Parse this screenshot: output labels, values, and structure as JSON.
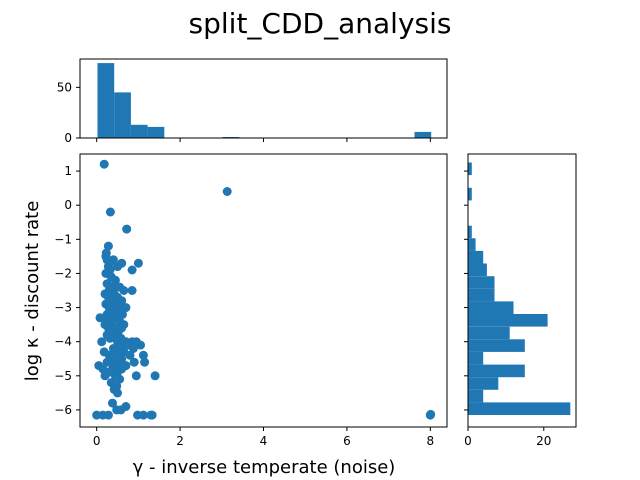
{
  "colors": {
    "primary": "#1f77b4",
    "axis": "#000000",
    "background": "#ffffff"
  },
  "chart_data": {
    "title": "split_CDD_analysis",
    "type": "scatter",
    "xlabel": "γ - inverse temperate (noise)",
    "ylabel": "log κ - discount rate",
    "scatter": {
      "xlim": [
        -0.4,
        8.4
      ],
      "ylim": [
        -6.5,
        1.5
      ],
      "xticks": [
        0,
        2,
        4,
        6,
        8
      ],
      "yticks": [
        -6,
        -5,
        -4,
        -3,
        -2,
        -1,
        0,
        1
      ],
      "points": [
        [
          0.18,
          1.2
        ],
        [
          3.13,
          0.4
        ],
        [
          0.33,
          -0.2
        ],
        [
          0.72,
          -0.7
        ],
        [
          0.28,
          -1.2
        ],
        [
          0.23,
          -1.4
        ],
        [
          0.22,
          -1.5
        ],
        [
          0.25,
          -1.6
        ],
        [
          0.4,
          -1.6
        ],
        [
          1.0,
          -1.7
        ],
        [
          0.3,
          -1.7
        ],
        [
          0.6,
          -1.7
        ],
        [
          0.28,
          -1.8
        ],
        [
          0.5,
          -1.8
        ],
        [
          0.32,
          -1.9
        ],
        [
          0.85,
          -1.9
        ],
        [
          0.22,
          -2.0
        ],
        [
          0.35,
          -2.1
        ],
        [
          0.45,
          -2.2
        ],
        [
          0.25,
          -2.3
        ],
        [
          0.38,
          -2.4
        ],
        [
          0.55,
          -2.4
        ],
        [
          0.3,
          -2.5
        ],
        [
          0.65,
          -2.5
        ],
        [
          0.85,
          -2.5
        ],
        [
          0.2,
          -2.6
        ],
        [
          0.42,
          -2.6
        ],
        [
          0.28,
          -2.7
        ],
        [
          0.5,
          -2.7
        ],
        [
          0.35,
          -2.8
        ],
        [
          0.6,
          -2.8
        ],
        [
          0.22,
          -2.9
        ],
        [
          0.45,
          -2.9
        ],
        [
          0.3,
          -3.0
        ],
        [
          0.55,
          -3.0
        ],
        [
          0.7,
          -3.0
        ],
        [
          0.38,
          -3.1
        ],
        [
          0.25,
          -3.2
        ],
        [
          0.5,
          -3.2
        ],
        [
          0.62,
          -3.2
        ],
        [
          0.08,
          -3.3
        ],
        [
          0.18,
          -3.3
        ],
        [
          0.3,
          -3.3
        ],
        [
          0.42,
          -3.3
        ],
        [
          0.55,
          -3.4
        ],
        [
          0.2,
          -3.5
        ],
        [
          0.35,
          -3.5
        ],
        [
          0.65,
          -3.5
        ],
        [
          0.28,
          -3.6
        ],
        [
          0.48,
          -3.6
        ],
        [
          0.6,
          -3.6
        ],
        [
          0.38,
          -3.7
        ],
        [
          0.52,
          -3.7
        ],
        [
          0.25,
          -3.8
        ],
        [
          0.45,
          -3.8
        ],
        [
          0.32,
          -3.9
        ],
        [
          0.58,
          -3.9
        ],
        [
          0.12,
          -4.0
        ],
        [
          0.5,
          -4.0
        ],
        [
          0.7,
          -4.0
        ],
        [
          0.85,
          -4.0
        ],
        [
          0.95,
          -4.0
        ],
        [
          0.62,
          -4.1
        ],
        [
          0.75,
          -4.1
        ],
        [
          1.05,
          -4.1
        ],
        [
          0.4,
          -4.2
        ],
        [
          0.55,
          -4.2
        ],
        [
          0.88,
          -4.2
        ],
        [
          0.18,
          -4.3
        ],
        [
          0.65,
          -4.3
        ],
        [
          0.3,
          -4.4
        ],
        [
          0.48,
          -4.4
        ],
        [
          0.8,
          -4.4
        ],
        [
          1.12,
          -4.4
        ],
        [
          0.35,
          -4.5
        ],
        [
          0.6,
          -4.5
        ],
        [
          0.25,
          -4.6
        ],
        [
          0.52,
          -4.6
        ],
        [
          0.9,
          -4.6
        ],
        [
          1.15,
          -4.6
        ],
        [
          0.05,
          -4.7
        ],
        [
          0.42,
          -4.7
        ],
        [
          0.7,
          -4.7
        ],
        [
          0.15,
          -4.8
        ],
        [
          0.38,
          -4.8
        ],
        [
          0.6,
          -4.8
        ],
        [
          0.28,
          -4.9
        ],
        [
          0.5,
          -4.9
        ],
        [
          0.2,
          -5.0
        ],
        [
          0.45,
          -5.0
        ],
        [
          0.95,
          -5.0
        ],
        [
          1.4,
          -5.0
        ],
        [
          0.55,
          -5.1
        ],
        [
          0.35,
          -5.2
        ],
        [
          0.48,
          -5.3
        ],
        [
          0.42,
          -5.4
        ],
        [
          0.5,
          -5.5
        ],
        [
          0.38,
          -5.8
        ],
        [
          0.7,
          -5.9
        ],
        [
          0.48,
          -6.0
        ],
        [
          0.58,
          -6.0
        ],
        [
          0.0,
          -6.15
        ],
        [
          0.15,
          -6.15
        ],
        [
          0.28,
          -6.15
        ],
        [
          0.98,
          -6.15
        ],
        [
          1.12,
          -6.15
        ],
        [
          1.3,
          -6.15
        ],
        [
          1.33,
          -6.15
        ],
        [
          8.0,
          -6.15
        ],
        [
          8.01,
          -6.13
        ]
      ]
    },
    "top_histogram": {
      "ylim": [
        0,
        78
      ],
      "yticks": [
        0,
        50
      ],
      "bins": [
        {
          "x0": 0.02,
          "x1": 0.42,
          "count": 74
        },
        {
          "x0": 0.42,
          "x1": 0.82,
          "count": 45
        },
        {
          "x0": 0.82,
          "x1": 1.22,
          "count": 13
        },
        {
          "x0": 1.22,
          "x1": 1.62,
          "count": 11
        },
        {
          "x0": 3.02,
          "x1": 3.42,
          "count": 1
        },
        {
          "x0": 7.62,
          "x1": 8.02,
          "count": 6
        }
      ]
    },
    "right_histogram": {
      "xlim": [
        0,
        28.5
      ],
      "xticks": [
        0,
        20
      ],
      "bins": [
        {
          "y0": -6.15,
          "y1": -5.78,
          "count": 27
        },
        {
          "y0": -5.78,
          "y1": -5.41,
          "count": 4
        },
        {
          "y0": -5.41,
          "y1": -5.04,
          "count": 8
        },
        {
          "y0": -5.04,
          "y1": -4.67,
          "count": 15
        },
        {
          "y0": -4.67,
          "y1": -4.3,
          "count": 4
        },
        {
          "y0": -4.3,
          "y1": -3.93,
          "count": 15
        },
        {
          "y0": -3.93,
          "y1": -3.56,
          "count": 11
        },
        {
          "y0": -3.56,
          "y1": -3.19,
          "count": 21
        },
        {
          "y0": -3.19,
          "y1": -2.82,
          "count": 12
        },
        {
          "y0": -2.82,
          "y1": -2.45,
          "count": 7
        },
        {
          "y0": -2.45,
          "y1": -2.08,
          "count": 7
        },
        {
          "y0": -2.08,
          "y1": -1.71,
          "count": 5
        },
        {
          "y0": -1.71,
          "y1": -1.34,
          "count": 4
        },
        {
          "y0": -1.34,
          "y1": -0.97,
          "count": 2
        },
        {
          "y0": -0.97,
          "y1": -0.6,
          "count": 1
        },
        {
          "y0": 0.14,
          "y1": 0.51,
          "count": 1
        },
        {
          "y0": 0.88,
          "y1": 1.25,
          "count": 1
        }
      ]
    }
  }
}
